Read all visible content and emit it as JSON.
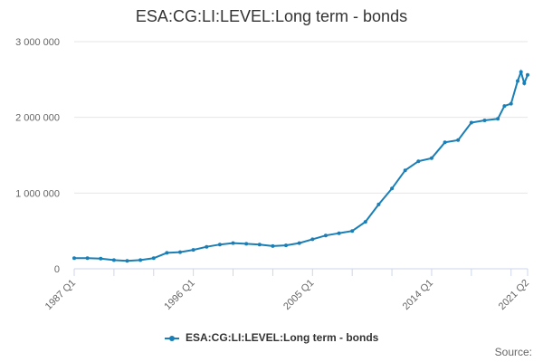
{
  "chart_data": {
    "type": "line",
    "title": "ESA:CG:LI:LEVEL:Long term - bonds",
    "xlabel": "",
    "ylabel": "",
    "ylim": [
      0,
      3000000
    ],
    "y_ticks": [
      0,
      1000000,
      2000000,
      3000000
    ],
    "y_tick_labels": [
      "0",
      "1 000 000",
      "2 000 000",
      "3 000 000"
    ],
    "x_tick_labels": [
      "1987 Q1",
      "1996 Q1",
      "2005 Q1",
      "2014 Q1",
      "2021 Q2"
    ],
    "legend_position": "bottom",
    "grid": true,
    "series": [
      {
        "name": "ESA:CG:LI:LEVEL:Long term - bonds",
        "color": "#1a7fb6",
        "x": [
          "1987 Q1",
          "1988 Q1",
          "1989 Q1",
          "1990 Q1",
          "1991 Q1",
          "1992 Q1",
          "1993 Q1",
          "1994 Q1",
          "1995 Q1",
          "1996 Q1",
          "1997 Q1",
          "1998 Q1",
          "1999 Q1",
          "2000 Q1",
          "2001 Q1",
          "2002 Q1",
          "2003 Q1",
          "2004 Q1",
          "2005 Q1",
          "2006 Q1",
          "2007 Q1",
          "2008 Q1",
          "2009 Q1",
          "2010 Q1",
          "2011 Q1",
          "2012 Q1",
          "2013 Q1",
          "2014 Q1",
          "2015 Q1",
          "2016 Q1",
          "2017 Q1",
          "2018 Q1",
          "2019 Q1",
          "2019 Q3",
          "2020 Q1",
          "2020 Q3",
          "2020 Q4",
          "2021 Q1",
          "2021 Q2"
        ],
        "values": [
          140000,
          140000,
          135000,
          115000,
          105000,
          115000,
          140000,
          210000,
          220000,
          250000,
          290000,
          320000,
          340000,
          330000,
          320000,
          300000,
          310000,
          340000,
          390000,
          440000,
          470000,
          500000,
          620000,
          850000,
          1060000,
          1300000,
          1420000,
          1460000,
          1670000,
          1700000,
          1930000,
          1960000,
          1980000,
          2150000,
          2180000,
          2480000,
          2600000,
          2450000,
          2560000
        ]
      }
    ],
    "source_label": "Source:"
  }
}
